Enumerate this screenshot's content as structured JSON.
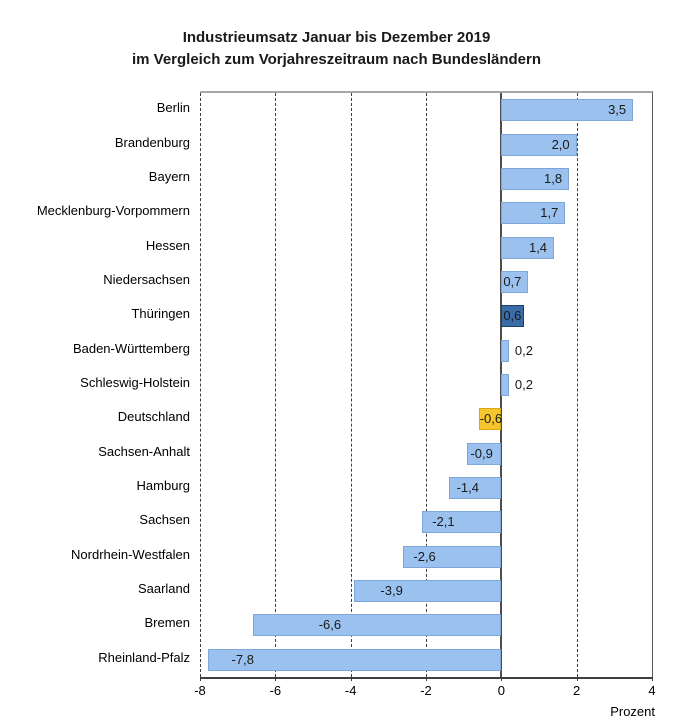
{
  "title": {
    "line1": "Industrieumsatz Januar bis Dezember 2019",
    "line2": "im Vergleich zum Vorjahreszeitraum nach Bundesländern"
  },
  "chart_data": {
    "type": "bar",
    "orientation": "horizontal",
    "title": "Industrieumsatz Januar bis Dezember 2019 im Vergleich zum Vorjahreszeitraum nach Bundesländern",
    "xlabel": "Prozent",
    "xlim": [
      -8,
      4
    ],
    "xticks": [
      -8,
      -6,
      -4,
      -2,
      0,
      2,
      4
    ],
    "xtick_labels": [
      "-8",
      "-6",
      "-4",
      "-2",
      "0",
      "2",
      "4"
    ],
    "grid": "vertical-dashed",
    "legend": "none",
    "categories": [
      "Berlin",
      "Brandenburg",
      "Bayern",
      "Mecklenburg-Vorpommern",
      "Hessen",
      "Niedersachsen",
      "Thüringen",
      "Baden-Württemberg",
      "Schleswig-Holstein",
      "Deutschland",
      "Sachsen-Anhalt",
      "Hamburg",
      "Sachsen",
      "Nordrhein-Westfalen",
      "Saarland",
      "Bremen",
      "Rheinland-Pfalz"
    ],
    "values": [
      3.5,
      2.0,
      1.8,
      1.7,
      1.4,
      0.7,
      0.6,
      0.2,
      0.2,
      -0.6,
      -0.9,
      -1.4,
      -2.1,
      -2.6,
      -3.9,
      -6.6,
      -7.8
    ],
    "colors": {
      "default_fill": "#9BC1EF",
      "default_border": "#7EA6D8",
      "dark_fill": "#3A6CA8",
      "dark_border": "#1F3F66",
      "yellow_fill": "#F7C52D",
      "yellow_border": "#DBA617",
      "label_text": "#1a1a1a"
    },
    "bars": [
      {
        "label": "Berlin",
        "value": 3.5,
        "display": "3,5",
        "style": "default",
        "placement": "in-right"
      },
      {
        "label": "Brandenburg",
        "value": 2.0,
        "display": "2,0",
        "style": "default",
        "placement": "in-right"
      },
      {
        "label": "Bayern",
        "value": 1.8,
        "display": "1,8",
        "style": "default",
        "placement": "in-right"
      },
      {
        "label": "Mecklenburg-Vorpommern",
        "value": 1.7,
        "display": "1,7",
        "style": "default",
        "placement": "in-right"
      },
      {
        "label": "Hessen",
        "value": 1.4,
        "display": "1,4",
        "style": "default",
        "placement": "in-right"
      },
      {
        "label": "Niedersachsen",
        "value": 0.7,
        "display": "0,7",
        "style": "default",
        "placement": "in-left",
        "inset": 2
      },
      {
        "label": "Thüringen",
        "value": 0.6,
        "display": "0,6",
        "style": "dark",
        "placement": "in-left",
        "inset": 2
      },
      {
        "label": "Baden-Württemberg",
        "value": 0.2,
        "display": "0,2",
        "style": "default",
        "placement": "out-right"
      },
      {
        "label": "Schleswig-Holstein",
        "value": 0.2,
        "display": "0,2",
        "style": "default",
        "placement": "out-right"
      },
      {
        "label": "Deutschland",
        "value": -0.6,
        "display": "-0,6",
        "style": "yellow",
        "placement": "in-left",
        "inset": 1
      },
      {
        "label": "Sachsen-Anhalt",
        "value": -0.9,
        "display": "-0,9",
        "style": "default",
        "placement": "in-left",
        "inset": 3
      },
      {
        "label": "Hamburg",
        "value": -1.4,
        "display": "-1,4",
        "style": "default",
        "placement": "in-left",
        "inset": 8
      },
      {
        "label": "Sachsen",
        "value": -2.1,
        "display": "-2,1",
        "style": "default",
        "placement": "in-left",
        "inset": 10
      },
      {
        "label": "Nordrhein-Westfalen",
        "value": -2.6,
        "display": "-2,6",
        "style": "default",
        "placement": "in-left",
        "inset": 10
      },
      {
        "label": "Saarland",
        "value": -3.9,
        "display": "-3,9",
        "style": "default",
        "placement": "in-left",
        "inset": 26
      },
      {
        "label": "Bremen",
        "value": -6.6,
        "display": "-6,6",
        "style": "default",
        "placement": "in-left",
        "inset": 66
      },
      {
        "label": "Rheinland-Pfalz",
        "value": -7.8,
        "display": "-7,8",
        "style": "default",
        "placement": "in-left",
        "inset": 24
      }
    ]
  }
}
